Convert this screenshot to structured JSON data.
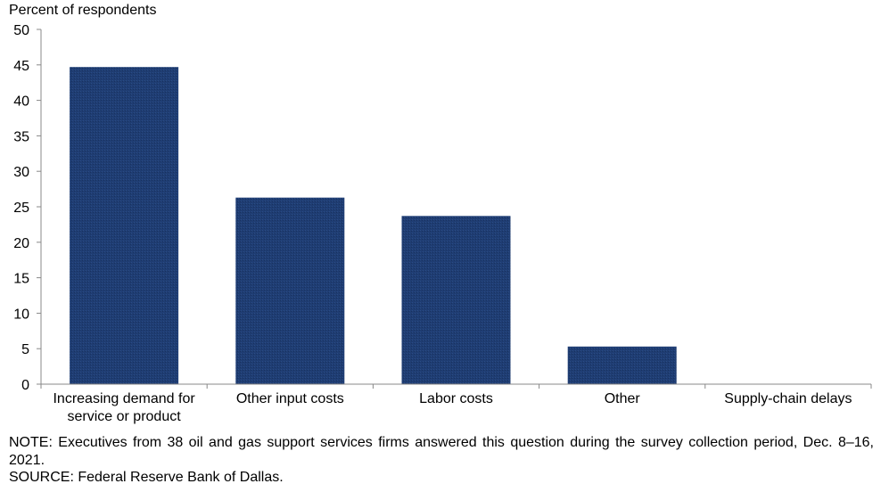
{
  "chart_data": {
    "type": "bar",
    "ylabel": "Percent of respondents",
    "xlabel": "",
    "title": "",
    "categories": [
      [
        "Increasing demand for",
        "service or product"
      ],
      [
        "Other input costs"
      ],
      [
        "Labor costs"
      ],
      [
        "Other"
      ],
      [
        "Supply-chain delays"
      ]
    ],
    "values": [
      44.7,
      26.3,
      23.7,
      5.3,
      0
    ],
    "ylim": [
      0,
      50
    ],
    "yticks": [
      0,
      5,
      10,
      15,
      20,
      25,
      30,
      35,
      40,
      45,
      50
    ],
    "grid": false,
    "bar_color": "#1f3d73"
  },
  "footer": {
    "note": "NOTE:  Executives  from 38 oil and gas support services firms answered this question during the survey collection period, Dec. 8–16, 2021.",
    "source": "SOURCE:  Federal Reserve Bank of Dallas."
  }
}
